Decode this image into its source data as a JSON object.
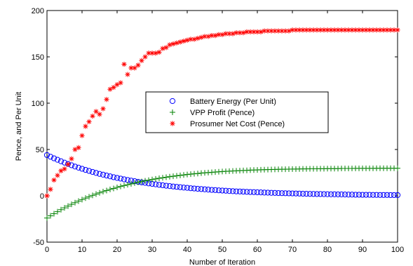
{
  "chart_data": {
    "type": "scatter",
    "xlabel": "Number of Iteration",
    "ylabel": "Pence, and Per Unit",
    "xlim": [
      0,
      100
    ],
    "ylim": [
      -50,
      200
    ],
    "xticks": [
      0,
      10,
      20,
      30,
      40,
      50,
      60,
      70,
      80,
      90,
      100
    ],
    "yticks": [
      -50,
      0,
      50,
      100,
      150,
      200
    ],
    "xtick_labels": [
      "0",
      "10",
      "20",
      "30",
      "40",
      "50",
      "60",
      "70",
      "80",
      "90",
      "100"
    ],
    "ytick_labels": [
      "-50",
      "0",
      "50",
      "100",
      "150",
      "200"
    ],
    "grid": false,
    "legend_position": "center",
    "series": [
      {
        "name": "Battery Energy (Per Unit)",
        "marker": "circle",
        "color": "#0000ff",
        "x": [
          0,
          1,
          2,
          3,
          4,
          5,
          6,
          7,
          8,
          9,
          10,
          11,
          12,
          13,
          14,
          15,
          16,
          17,
          18,
          19,
          20,
          21,
          22,
          23,
          24,
          25,
          26,
          27,
          28,
          29,
          30,
          31,
          32,
          33,
          34,
          35,
          36,
          37,
          38,
          39,
          40,
          41,
          42,
          43,
          44,
          45,
          46,
          47,
          48,
          49,
          50,
          51,
          52,
          53,
          54,
          55,
          56,
          57,
          58,
          59,
          60,
          61,
          62,
          63,
          64,
          65,
          66,
          67,
          68,
          69,
          70,
          71,
          72,
          73,
          74,
          75,
          76,
          77,
          78,
          79,
          80,
          81,
          82,
          83,
          84,
          85,
          86,
          87,
          88,
          89,
          90,
          91,
          92,
          93,
          94,
          95,
          96,
          97,
          98,
          99,
          100
        ],
        "y": [
          44.0,
          42.2,
          40.5,
          38.9,
          37.3,
          35.8,
          34.4,
          33.0,
          31.6,
          30.4,
          29.2,
          28.0,
          26.9,
          25.8,
          24.7,
          23.7,
          22.8,
          21.9,
          21.0,
          20.1,
          19.3,
          18.6,
          17.8,
          17.1,
          16.4,
          15.8,
          15.1,
          14.5,
          14.0,
          13.4,
          12.9,
          12.4,
          11.9,
          11.4,
          10.9,
          10.5,
          10.1,
          9.7,
          9.3,
          8.9,
          8.6,
          8.2,
          7.9,
          7.6,
          7.3,
          7.0,
          6.7,
          6.4,
          6.2,
          5.9,
          5.7,
          5.5,
          5.2,
          5.0,
          4.8,
          4.7,
          4.5,
          4.3,
          4.1,
          4.0,
          3.8,
          3.7,
          3.5,
          3.4,
          3.2,
          3.1,
          3.0,
          2.9,
          2.8,
          2.7,
          2.6,
          2.5,
          2.4,
          2.3,
          2.2,
          2.1,
          2.0,
          1.9,
          1.9,
          1.8,
          1.7,
          1.6,
          1.6,
          1.5,
          1.5,
          1.4,
          1.3,
          1.3,
          1.2,
          1.2,
          1.1,
          1.1,
          1.1,
          1.0,
          1.0,
          0.9,
          0.9,
          0.9,
          0.8,
          0.8,
          0.8
        ]
      },
      {
        "name": "VPP Profit (Pence)",
        "marker": "plus",
        "color": "#008000",
        "x": [
          0,
          1,
          2,
          3,
          4,
          5,
          6,
          7,
          8,
          9,
          10,
          11,
          12,
          13,
          14,
          15,
          16,
          17,
          18,
          19,
          20,
          21,
          22,
          23,
          24,
          25,
          26,
          27,
          28,
          29,
          30,
          31,
          32,
          33,
          34,
          35,
          36,
          37,
          38,
          39,
          40,
          41,
          42,
          43,
          44,
          45,
          46,
          47,
          48,
          49,
          50,
          51,
          52,
          53,
          54,
          55,
          56,
          57,
          58,
          59,
          60,
          61,
          62,
          63,
          64,
          65,
          66,
          67,
          68,
          69,
          70,
          71,
          72,
          73,
          74,
          75,
          76,
          77,
          78,
          79,
          80,
          81,
          82,
          83,
          84,
          85,
          86,
          87,
          88,
          89,
          90,
          91,
          92,
          93,
          94,
          95,
          96,
          97,
          98,
          99,
          100
        ],
        "y": [
          -24.0,
          -21.6,
          -19.3,
          -17.1,
          -15.0,
          -13.0,
          -11.1,
          -9.2,
          -7.4,
          -5.7,
          -4.1,
          -2.5,
          -1.0,
          0.5,
          1.9,
          3.2,
          4.5,
          5.7,
          6.9,
          8.0,
          9.1,
          10.1,
          11.1,
          12.0,
          12.9,
          13.8,
          14.6,
          15.4,
          16.2,
          16.9,
          17.6,
          18.3,
          18.9,
          19.5,
          20.1,
          20.6,
          21.1,
          21.6,
          22.1,
          22.5,
          23.0,
          23.4,
          23.8,
          24.1,
          24.5,
          24.8,
          25.1,
          25.4,
          25.7,
          25.9,
          26.2,
          26.4,
          26.6,
          26.8,
          27.0,
          27.2,
          27.4,
          27.5,
          27.7,
          27.8,
          27.9,
          28.1,
          28.2,
          28.3,
          28.4,
          28.5,
          28.6,
          28.7,
          28.7,
          28.8,
          28.9,
          28.9,
          29.0,
          29.1,
          29.1,
          29.2,
          29.2,
          29.2,
          29.3,
          29.3,
          29.4,
          29.4,
          29.4,
          29.4,
          29.5,
          29.5,
          29.5,
          29.5,
          29.6,
          29.6,
          29.6,
          29.6,
          29.6,
          29.6,
          29.7,
          29.7,
          29.7,
          29.7,
          29.7,
          29.7,
          29.7
        ]
      },
      {
        "name": "Prosumer Net Cost (Pence)",
        "marker": "star",
        "color": "#ff0000",
        "x": [
          0,
          1,
          2,
          3,
          4,
          5,
          6,
          7,
          8,
          9,
          10,
          11,
          12,
          13,
          14,
          15,
          16,
          17,
          18,
          19,
          20,
          21,
          22,
          23,
          24,
          25,
          26,
          27,
          28,
          29,
          30,
          31,
          32,
          33,
          34,
          35,
          36,
          37,
          38,
          39,
          40,
          41,
          42,
          43,
          44,
          45,
          46,
          47,
          48,
          49,
          50,
          51,
          52,
          53,
          54,
          55,
          56,
          57,
          58,
          59,
          60,
          61,
          62,
          63,
          64,
          65,
          66,
          67,
          68,
          69,
          70,
          71,
          72,
          73,
          74,
          75,
          76,
          77,
          78,
          79,
          80,
          81,
          82,
          83,
          84,
          85,
          86,
          87,
          88,
          89,
          90,
          91,
          92,
          93,
          94,
          95,
          96,
          97,
          98,
          99,
          100
        ],
        "y": [
          0,
          7,
          17,
          22,
          27,
          29,
          34,
          40,
          50,
          52,
          65,
          75,
          80,
          86,
          91,
          88,
          94,
          104,
          115,
          117,
          120,
          122,
          142,
          131,
          138,
          138,
          141,
          146,
          150,
          154,
          154,
          154,
          155,
          159,
          160,
          163,
          164,
          165,
          166,
          167,
          168,
          169,
          169,
          170,
          171,
          172,
          172,
          173,
          173,
          174,
          174,
          175,
          175,
          175,
          176,
          176,
          176,
          177,
          177,
          177,
          177,
          177,
          178,
          178,
          178,
          178,
          178,
          178,
          178,
          178,
          179,
          179,
          179,
          179,
          179,
          179,
          179,
          179,
          179,
          179,
          179,
          179,
          179,
          179,
          179,
          179,
          179,
          179,
          179,
          179,
          179,
          179,
          179,
          179,
          179,
          179,
          179,
          179,
          179,
          179,
          179
        ]
      }
    ]
  }
}
